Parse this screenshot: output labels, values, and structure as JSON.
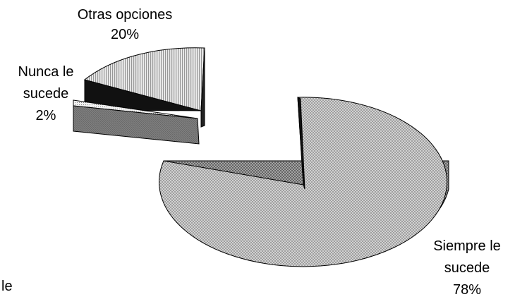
{
  "chart_data": {
    "type": "pie",
    "style": "3d-exploded",
    "title": "",
    "slices": [
      {
        "label_lines": [
          "Siempre le",
          "sucede"
        ],
        "pct_label": "78%",
        "value": 78,
        "pattern": "dense-crosshatch"
      },
      {
        "label_lines": [
          "Nunca le",
          "sucede"
        ],
        "pct_label": "2%",
        "value": 2,
        "pattern": "dotted"
      },
      {
        "label_lines": [
          "Otras opciones"
        ],
        "pct_label": "20%",
        "value": 20,
        "pattern": "vertical-stripes"
      }
    ],
    "stray_text": "le",
    "colors": {
      "outline": "#000000",
      "background": "#ffffff",
      "wall_dark": "#111111"
    }
  }
}
